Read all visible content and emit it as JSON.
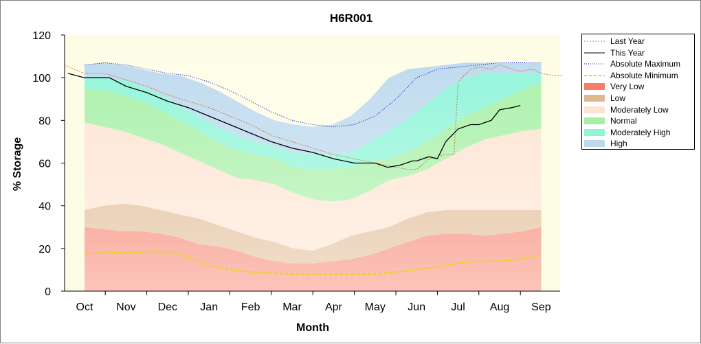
{
  "chart_data": {
    "type": "area",
    "title": "H6R001",
    "xlabel": "Month",
    "ylabel": "% Storage",
    "ylim": [
      0,
      120
    ],
    "yticks": [
      0,
      20,
      40,
      60,
      80,
      100,
      120
    ],
    "categories": [
      "Oct",
      "Nov",
      "Dec",
      "Jan",
      "Feb",
      "Mar",
      "Apr",
      "May",
      "Jun",
      "Jul",
      "Aug",
      "Sep"
    ],
    "grid": false,
    "legend_position": "right",
    "bands": [
      {
        "name": "Very Low",
        "color": "#f87c66",
        "lower": [
          0,
          0,
          0,
          0,
          0,
          0,
          0,
          0,
          0,
          0,
          0,
          0,
          0,
          0,
          0,
          0,
          0,
          0,
          0,
          0,
          0,
          0,
          0,
          0,
          0
        ],
        "upper": [
          30,
          29,
          28,
          28,
          27,
          25,
          22,
          21,
          19,
          16,
          14,
          13,
          13,
          14,
          15,
          17,
          20,
          23,
          26,
          27,
          27,
          26,
          27,
          28,
          30
        ]
      },
      {
        "name": "Low",
        "color": "#e0b890",
        "lower": [
          30,
          29,
          28,
          28,
          27,
          25,
          22,
          21,
          19,
          16,
          14,
          13,
          13,
          14,
          15,
          17,
          20,
          23,
          26,
          27,
          27,
          26,
          27,
          28,
          30
        ],
        "upper": [
          38,
          40,
          41,
          40,
          38,
          36,
          34,
          31,
          28,
          25,
          23,
          20,
          19,
          22,
          26,
          28,
          30,
          34,
          37,
          38,
          38,
          38,
          38,
          38,
          38
        ]
      },
      {
        "name": "Moderately Low",
        "color": "#fde3d0",
        "lower": [
          38,
          40,
          41,
          40,
          38,
          36,
          34,
          31,
          28,
          25,
          23,
          20,
          19,
          22,
          26,
          28,
          30,
          34,
          37,
          38,
          38,
          38,
          38,
          38,
          38
        ],
        "upper": [
          79,
          77,
          75,
          72,
          69,
          65,
          61,
          57,
          53,
          52,
          50,
          46,
          43,
          42,
          43,
          47,
          52,
          54,
          57,
          62,
          67,
          71,
          73,
          75,
          76
        ]
      },
      {
        "name": "Normal",
        "color": "#a6f0a6",
        "lower": [
          79,
          77,
          75,
          72,
          69,
          65,
          61,
          57,
          53,
          52,
          50,
          46,
          43,
          42,
          43,
          47,
          52,
          54,
          57,
          62,
          67,
          71,
          73,
          75,
          76
        ],
        "upper": [
          95,
          94,
          92,
          89,
          85,
          80,
          75,
          70,
          66,
          64,
          62,
          58,
          57,
          57,
          58,
          61,
          62,
          65,
          70,
          76,
          82,
          86,
          90,
          94,
          98
        ]
      },
      {
        "name": "Moderately High",
        "color": "#8ef5d8",
        "lower": [
          95,
          94,
          92,
          89,
          85,
          80,
          75,
          70,
          66,
          64,
          62,
          58,
          57,
          57,
          58,
          61,
          62,
          65,
          70,
          76,
          82,
          86,
          90,
          94,
          98
        ],
        "upper": [
          100,
          100,
          99,
          96,
          92,
          87,
          82,
          77,
          73,
          70,
          68,
          65,
          64,
          64,
          65,
          70,
          75,
          81,
          88,
          95,
          100,
          102,
          102,
          102,
          102
        ]
      },
      {
        "name": "High",
        "color": "#bcd9ee",
        "lower": [
          100,
          100,
          99,
          96,
          92,
          87,
          82,
          77,
          73,
          70,
          68,
          65,
          64,
          64,
          65,
          70,
          75,
          81,
          88,
          95,
          100,
          102,
          102,
          102,
          102
        ],
        "upper": [
          106,
          107,
          106,
          104,
          102,
          101,
          98,
          94,
          89,
          84,
          80,
          78,
          77,
          78,
          82,
          90,
          100,
          104,
          105,
          106,
          107,
          107,
          107,
          107,
          107
        ]
      }
    ],
    "series": [
      {
        "name": "Last Year",
        "color": "#c8783c",
        "style": "dashed",
        "width": 1,
        "x": [
          -0.5,
          0,
          0.5,
          1,
          1.5,
          2,
          2.5,
          3,
          3.5,
          4,
          4.5,
          5,
          5.5,
          6,
          6.5,
          7,
          7.5,
          7.8,
          8,
          8.3,
          8.5,
          8.7,
          8.9,
          9,
          9.3,
          9.5,
          9.8,
          10,
          10.3,
          10.5,
          10.8,
          11,
          11.3,
          11.5
        ],
        "values": [
          106,
          102,
          102,
          99,
          96,
          92,
          89,
          86,
          82,
          78,
          73,
          70,
          67,
          64,
          62,
          60,
          58,
          57,
          57,
          62,
          63,
          64,
          64,
          98,
          104,
          105,
          104,
          106,
          104,
          103,
          104,
          102,
          101,
          101
        ]
      },
      {
        "name": "This Year",
        "color": "#000000",
        "style": "solid",
        "width": 1.3,
        "x": [
          -0.4,
          0,
          0.3,
          0.6,
          1,
          1.5,
          2,
          2.5,
          3,
          3.5,
          4,
          4.5,
          5,
          5.5,
          6,
          6.5,
          7,
          7.3,
          7.6,
          7.9,
          8,
          8.3,
          8.5,
          8.7,
          9,
          9.3,
          9.5,
          9.8,
          10,
          10.3,
          10.5
        ],
        "values": [
          102,
          100,
          100,
          100,
          96,
          93,
          89,
          86,
          82,
          78,
          74,
          70,
          67,
          65,
          62,
          60,
          60,
          58,
          59,
          61,
          61,
          63,
          62,
          70,
          76,
          78,
          78,
          80,
          85,
          86,
          87
        ]
      },
      {
        "name": "Absolute Maximum",
        "color": "#0000cc",
        "style": "dotted",
        "width": 1,
        "x": [
          0,
          0.5,
          1,
          1.5,
          2,
          2.5,
          3,
          3.5,
          4,
          4.5,
          5,
          5.5,
          6,
          6.5,
          7,
          7.5,
          8,
          8.5,
          9,
          9.5,
          10,
          10.5,
          11
        ],
        "values": [
          106,
          107,
          106,
          104,
          102,
          101,
          98,
          94,
          89,
          84,
          80,
          78,
          77,
          78,
          82,
          90,
          100,
          104,
          105,
          106,
          107,
          107,
          107
        ]
      },
      {
        "name": "Absolute Minimum",
        "color": "#e8d800",
        "style": "dashed",
        "width": 2,
        "x": [
          0,
          0.5,
          1,
          1.5,
          2,
          2.5,
          3,
          3.5,
          4,
          4.5,
          5,
          5.5,
          6,
          6.5,
          7,
          7.5,
          8,
          8.5,
          9,
          9.5,
          10,
          10.5,
          11
        ],
        "values": [
          17.5,
          18,
          18,
          18.5,
          18.5,
          16,
          12,
          10,
          9,
          8.5,
          8,
          8,
          8,
          8,
          8,
          9,
          10,
          11.5,
          13,
          14,
          14,
          15,
          17
        ]
      },
      {
        "name": "Low",
        "color": "#e0b890",
        "style": "band"
      },
      {
        "name": "Very Low",
        "color": "#f87c66",
        "style": "band"
      },
      {
        "name": "Moderately Low",
        "color": "#fde3d0",
        "style": "band"
      },
      {
        "name": "Normal",
        "color": "#a6f0a6",
        "style": "band"
      },
      {
        "name": "Moderately High",
        "color": "#8ef5d8",
        "style": "band"
      },
      {
        "name": "High",
        "color": "#bcd9ee",
        "style": "band"
      }
    ]
  },
  "legend": {
    "items": [
      {
        "label": "Last Year",
        "kind": "line",
        "color": "#c8783c",
        "dash": "2,2"
      },
      {
        "label": "This Year",
        "kind": "line",
        "color": "#000000",
        "dash": ""
      },
      {
        "label": "Absolute Maximum",
        "kind": "line",
        "color": "#0000cc",
        "dash": "1,2"
      },
      {
        "label": "Absolute Minimum",
        "kind": "line",
        "color": "#e8d800",
        "dash": "4,3"
      },
      {
        "label": "Very Low",
        "kind": "box",
        "color": "#f87c66"
      },
      {
        "label": "Low",
        "kind": "box",
        "color": "#e0b890"
      },
      {
        "label": "Moderately Low",
        "kind": "box",
        "color": "#fde3d0"
      },
      {
        "label": "Normal",
        "kind": "box",
        "color": "#a6f0a6"
      },
      {
        "label": "Moderately High",
        "kind": "box",
        "color": "#8ef5d8"
      },
      {
        "label": "High",
        "kind": "box",
        "color": "#bcd9ee"
      }
    ]
  },
  "colors": {
    "plot_background": "#fdfde6",
    "axis": "#000000"
  }
}
